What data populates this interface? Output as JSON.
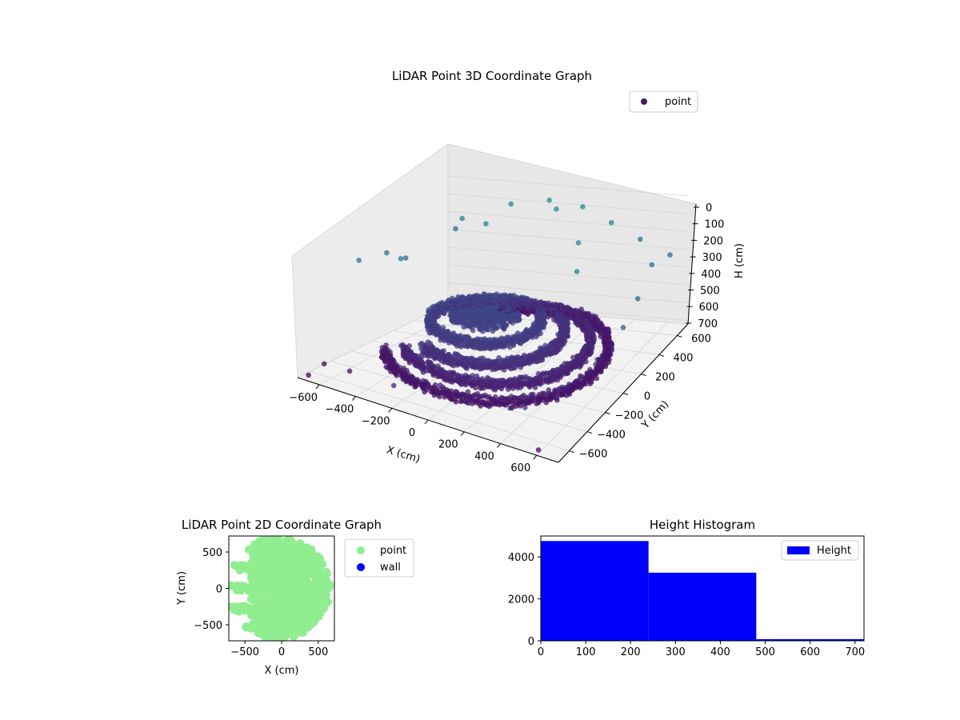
{
  "colors": {
    "point_3d_legend": "#46166b",
    "point_2d": "#90ee90",
    "wall": "#0000ff",
    "histogram": "#0000ff",
    "pane_fill": "#f2f2f2",
    "grid": "#d0d0d0"
  },
  "chart_data": [
    {
      "type": "scatter",
      "projection": "3d",
      "title": "LiDAR Point 3D Coordinate Graph",
      "xlabel": "X (cm)",
      "ylabel": "Y (cm)",
      "zlabel": "H (cm)",
      "xlim": [
        -720,
        720
      ],
      "ylim": [
        -720,
        720
      ],
      "zlim": [
        0,
        720
      ],
      "z_inverted": true,
      "xticks": [
        "−600",
        "−400",
        "−200",
        "0",
        "200",
        "400",
        "600"
      ],
      "yticks": [
        "−600",
        "−400",
        "−200",
        "0",
        "200",
        "400",
        "600"
      ],
      "zticks": [
        "0",
        "100",
        "200",
        "300",
        "400",
        "500",
        "600",
        "700"
      ],
      "legend": {
        "entries": [
          "point"
        ],
        "placement": "top-right"
      },
      "colormap": "viridis",
      "color_by": "height",
      "grid": true,
      "series": [
        {
          "name": "point",
          "shape": "elliptical arcs of points forming a partial ring at heights roughly 400–700 cm with a dense cluster near the centre, plus scattered outliers",
          "arcs": [
            {
              "center": [
                0,
                0
              ],
              "radius": 560,
              "h": 650,
              "theta_deg": [
                -150,
                120
              ]
            },
            {
              "center": [
                0,
                0
              ],
              "radius": 470,
              "h": 600,
              "theta_deg": [
                -140,
                110
              ]
            },
            {
              "center": [
                -50,
                0
              ],
              "radius": 380,
              "h": 550,
              "theta_deg": [
                -120,
                150
              ]
            },
            {
              "center": [
                -80,
                20
              ],
              "radius": 280,
              "h": 500,
              "theta_deg": [
                -180,
                180
              ]
            }
          ],
          "center_cluster": {
            "center": [
              -100,
              50
            ],
            "radius": 180,
            "h": 450
          },
          "outliers": [
            [
              -700,
              100,
              250
            ],
            [
              -650,
              200,
              300
            ],
            [
              -680,
              -200,
              200
            ],
            [
              -500,
              500,
              150
            ],
            [
              -300,
              650,
              100
            ],
            [
              -100,
              700,
              80
            ],
            [
              100,
              700,
              100
            ],
            [
              300,
              650,
              150
            ],
            [
              500,
              600,
              200
            ],
            [
              650,
              450,
              250
            ],
            [
              700,
              200,
              300
            ],
            [
              720,
              0,
              350
            ],
            [
              700,
              -250,
              400
            ],
            [
              650,
              -450,
              450
            ],
            [
              500,
              -650,
              520
            ],
            [
              200,
              -700,
              560
            ],
            [
              -200,
              -700,
              600
            ],
            [
              -500,
              -600,
              650
            ],
            [
              -700,
              -500,
              700
            ],
            [
              -700,
              -650,
              720
            ],
            [
              650,
              650,
              300
            ],
            [
              -600,
              600,
              250
            ],
            [
              600,
              -700,
              700
            ],
            [
              300,
              300,
              100
            ],
            [
              -300,
              400,
              120
            ],
            [
              0,
              600,
              80
            ],
            [
              400,
              100,
              150
            ],
            [
              -500,
              -100,
              180
            ]
          ]
        }
      ]
    },
    {
      "type": "scatter",
      "title": "LiDAR Point 2D Coordinate Graph",
      "xlabel": "X (cm)",
      "ylabel": "Y (cm)",
      "xlim": [
        -720,
        720
      ],
      "ylim": [
        -720,
        720
      ],
      "xticks": [
        -500,
        0,
        500
      ],
      "yticks": [
        -500,
        0,
        500
      ],
      "legend": {
        "entries": [
          "point",
          "wall"
        ],
        "placement": "outside-right"
      },
      "series": [
        {
          "name": "point",
          "color": "#90ee90",
          "description": "dense projected point cloud filling most of the plot except the left edge"
        },
        {
          "name": "wall",
          "color": "#0000ff",
          "values": []
        }
      ]
    },
    {
      "type": "bar",
      "subtype": "histogram",
      "title": "Height Histogram",
      "xlim": [
        0,
        720
      ],
      "ylim": [
        0,
        5000
      ],
      "xticks": [
        0,
        100,
        200,
        300,
        400,
        500,
        600,
        700
      ],
      "yticks": [
        0,
        2000,
        4000
      ],
      "legend": {
        "entries": [
          "Height"
        ],
        "placement": "top-right"
      },
      "series": [
        {
          "name": "Height",
          "bins": [
            {
              "from": 0,
              "to": 240,
              "count": 4760
            },
            {
              "from": 240,
              "to": 480,
              "count": 3250
            },
            {
              "from": 480,
              "to": 720,
              "count": 80
            }
          ]
        }
      ]
    }
  ]
}
